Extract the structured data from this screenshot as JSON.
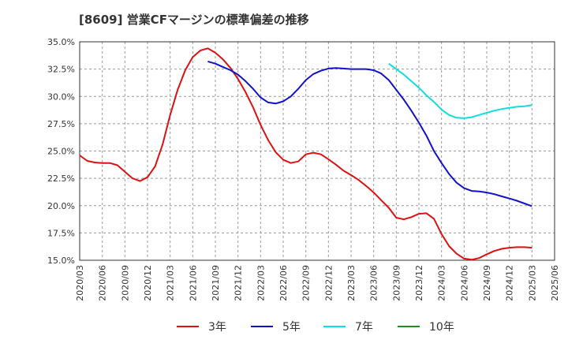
{
  "title": "[8609]  営業CFマージンの標準偏差の推移",
  "chart_data": {
    "type": "line",
    "title": "[8609]  営業CFマージンの標準偏差の推移",
    "xlabel": "",
    "ylabel": "",
    "ylim": [
      15.0,
      35.0
    ],
    "yticks": [
      "15.0%",
      "17.5%",
      "20.0%",
      "22.5%",
      "25.0%",
      "27.5%",
      "30.0%",
      "32.5%",
      "35.0%"
    ],
    "xticks": [
      "2020/03",
      "2020/06",
      "2020/09",
      "2020/12",
      "2021/03",
      "2021/06",
      "2021/09",
      "2021/12",
      "2022/03",
      "2022/06",
      "2022/09",
      "2022/12",
      "2023/03",
      "2023/06",
      "2023/09",
      "2023/12",
      "2024/03",
      "2024/06",
      "2024/09",
      "2024/12",
      "2025/03",
      "2025/06"
    ],
    "grid": true,
    "legend_position": "bottom",
    "series": [
      {
        "name": "3年",
        "color": "#dd1111",
        "x": [
          "2020/03",
          "2020/04",
          "2020/05",
          "2020/06",
          "2020/07",
          "2020/08",
          "2020/09",
          "2020/10",
          "2020/11",
          "2020/12",
          "2021/01",
          "2021/02",
          "2021/03",
          "2021/04",
          "2021/05",
          "2021/06",
          "2021/07",
          "2021/08",
          "2021/09",
          "2021/10",
          "2021/11",
          "2021/12",
          "2022/01",
          "2022/02",
          "2022/03",
          "2022/04",
          "2022/05",
          "2022/06",
          "2022/07",
          "2022/08",
          "2022/09",
          "2022/10",
          "2022/11",
          "2022/12",
          "2023/01",
          "2023/02",
          "2023/03",
          "2023/04",
          "2023/05",
          "2023/06",
          "2023/07",
          "2023/08",
          "2023/09",
          "2023/10",
          "2023/11",
          "2023/12",
          "2024/01",
          "2024/02",
          "2024/03",
          "2024/04",
          "2024/05",
          "2024/06",
          "2024/07",
          "2024/08",
          "2024/09",
          "2024/10",
          "2024/11",
          "2024/12",
          "2025/01",
          "2025/02",
          "2025/03"
        ],
        "values": [
          24.6,
          24.1,
          23.95,
          23.9,
          23.9,
          23.7,
          23.1,
          22.5,
          22.25,
          22.6,
          23.6,
          25.6,
          28.3,
          30.6,
          32.4,
          33.6,
          34.2,
          34.4,
          34.0,
          33.4,
          32.6,
          31.6,
          30.4,
          29.0,
          27.4,
          26.0,
          24.9,
          24.2,
          23.9,
          24.05,
          24.7,
          24.85,
          24.7,
          24.25,
          23.75,
          23.2,
          22.8,
          22.35,
          21.8,
          21.2,
          20.5,
          19.8,
          18.9,
          18.75,
          18.95,
          19.25,
          19.3,
          18.8,
          17.4,
          16.3,
          15.6,
          15.15,
          15.05,
          15.2,
          15.55,
          15.85,
          16.05,
          16.15,
          16.2,
          16.2,
          16.15
        ]
      },
      {
        "name": "5年",
        "color": "#1111cc",
        "x": [
          "2021/08",
          "2021/09",
          "2021/10",
          "2021/11",
          "2021/12",
          "2022/01",
          "2022/02",
          "2022/03",
          "2022/04",
          "2022/05",
          "2022/06",
          "2022/07",
          "2022/08",
          "2022/09",
          "2022/10",
          "2022/11",
          "2022/12",
          "2023/01",
          "2023/02",
          "2023/03",
          "2023/04",
          "2023/05",
          "2023/06",
          "2023/07",
          "2023/08",
          "2023/09",
          "2023/10",
          "2023/11",
          "2023/12",
          "2024/01",
          "2024/02",
          "2024/03",
          "2024/04",
          "2024/05",
          "2024/06",
          "2024/07",
          "2024/08",
          "2024/09",
          "2024/10",
          "2024/11",
          "2024/12",
          "2025/01",
          "2025/02",
          "2025/03"
        ],
        "values": [
          33.2,
          33.0,
          32.7,
          32.4,
          32.0,
          31.4,
          30.7,
          29.9,
          29.45,
          29.35,
          29.55,
          30.0,
          30.7,
          31.5,
          32.05,
          32.35,
          32.55,
          32.6,
          32.55,
          32.5,
          32.5,
          32.5,
          32.4,
          32.1,
          31.5,
          30.6,
          29.7,
          28.7,
          27.6,
          26.4,
          25.0,
          23.9,
          22.9,
          22.1,
          21.6,
          21.35,
          21.3,
          21.2,
          21.05,
          20.85,
          20.65,
          20.45,
          20.2,
          19.95
        ]
      },
      {
        "name": "7年",
        "color": "#11dddd",
        "x": [
          "2023/08",
          "2023/09",
          "2023/10",
          "2023/11",
          "2023/12",
          "2024/01",
          "2024/02",
          "2024/03",
          "2024/04",
          "2024/05",
          "2024/06",
          "2024/07",
          "2024/08",
          "2024/09",
          "2024/10",
          "2024/11",
          "2024/12",
          "2025/01",
          "2025/02",
          "2025/03"
        ],
        "values": [
          33.0,
          32.5,
          32.0,
          31.4,
          30.8,
          30.1,
          29.5,
          28.8,
          28.3,
          28.05,
          28.0,
          28.1,
          28.3,
          28.5,
          28.7,
          28.85,
          28.95,
          29.05,
          29.1,
          29.2
        ]
      },
      {
        "name": "10年",
        "color": "#228b22",
        "x": [],
        "values": []
      }
    ]
  }
}
